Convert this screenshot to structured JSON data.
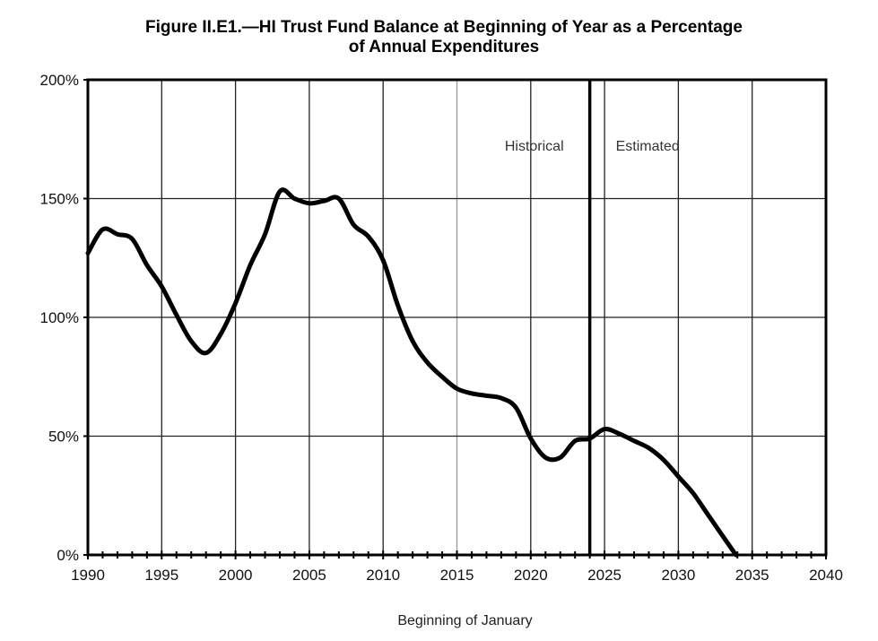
{
  "chart_data": {
    "type": "line",
    "title_line1": "Figure II.E1.—HI Trust Fund Balance at Beginning of Year as a Percentage",
    "title_line2": "of Annual Expenditures",
    "xlabel": "Beginning of January",
    "ylabel": "",
    "xlim": [
      1990,
      2040
    ],
    "ylim": [
      0,
      200
    ],
    "x_ticks": [
      1990,
      1995,
      2000,
      2005,
      2010,
      2015,
      2020,
      2025,
      2030,
      2035,
      2040
    ],
    "x_tick_labels": [
      "1990",
      "1995",
      "2000",
      "2005",
      "2010",
      "2015",
      "2020",
      "2025",
      "2030",
      "2035",
      "2040"
    ],
    "y_ticks": [
      0,
      50,
      100,
      150,
      200
    ],
    "y_tick_labels": [
      "0%",
      "50%",
      "100%",
      "150%",
      "200%"
    ],
    "grid": true,
    "divider_year": 2024,
    "annotations": [
      {
        "text": "Historical",
        "side": "left of divider"
      },
      {
        "text": "Estimated",
        "side": "right of divider"
      }
    ],
    "series": [
      {
        "name": "HI Trust Fund Ratio",
        "color": "#000000",
        "x": [
          1990,
          1991,
          1992,
          1993,
          1994,
          1995,
          1996,
          1997,
          1998,
          1999,
          2000,
          2001,
          2002,
          2003,
          2004,
          2005,
          2006,
          2007,
          2008,
          2009,
          2010,
          2011,
          2012,
          2013,
          2014,
          2015,
          2016,
          2017,
          2018,
          2019,
          2020,
          2021,
          2022,
          2023,
          2024,
          2025,
          2026,
          2027,
          2028,
          2029,
          2030,
          2031,
          2032,
          2033,
          2033.9
        ],
        "values": [
          127,
          137,
          135,
          133,
          122,
          113,
          101,
          90,
          85,
          93,
          106,
          122,
          135,
          153,
          150,
          148,
          149,
          150,
          139,
          134,
          124,
          105,
          90,
          81,
          75,
          70,
          68,
          67,
          66,
          62,
          49,
          41,
          41,
          48,
          49,
          53,
          51,
          48,
          45,
          40,
          33,
          26,
          17,
          8,
          0
        ]
      }
    ]
  }
}
